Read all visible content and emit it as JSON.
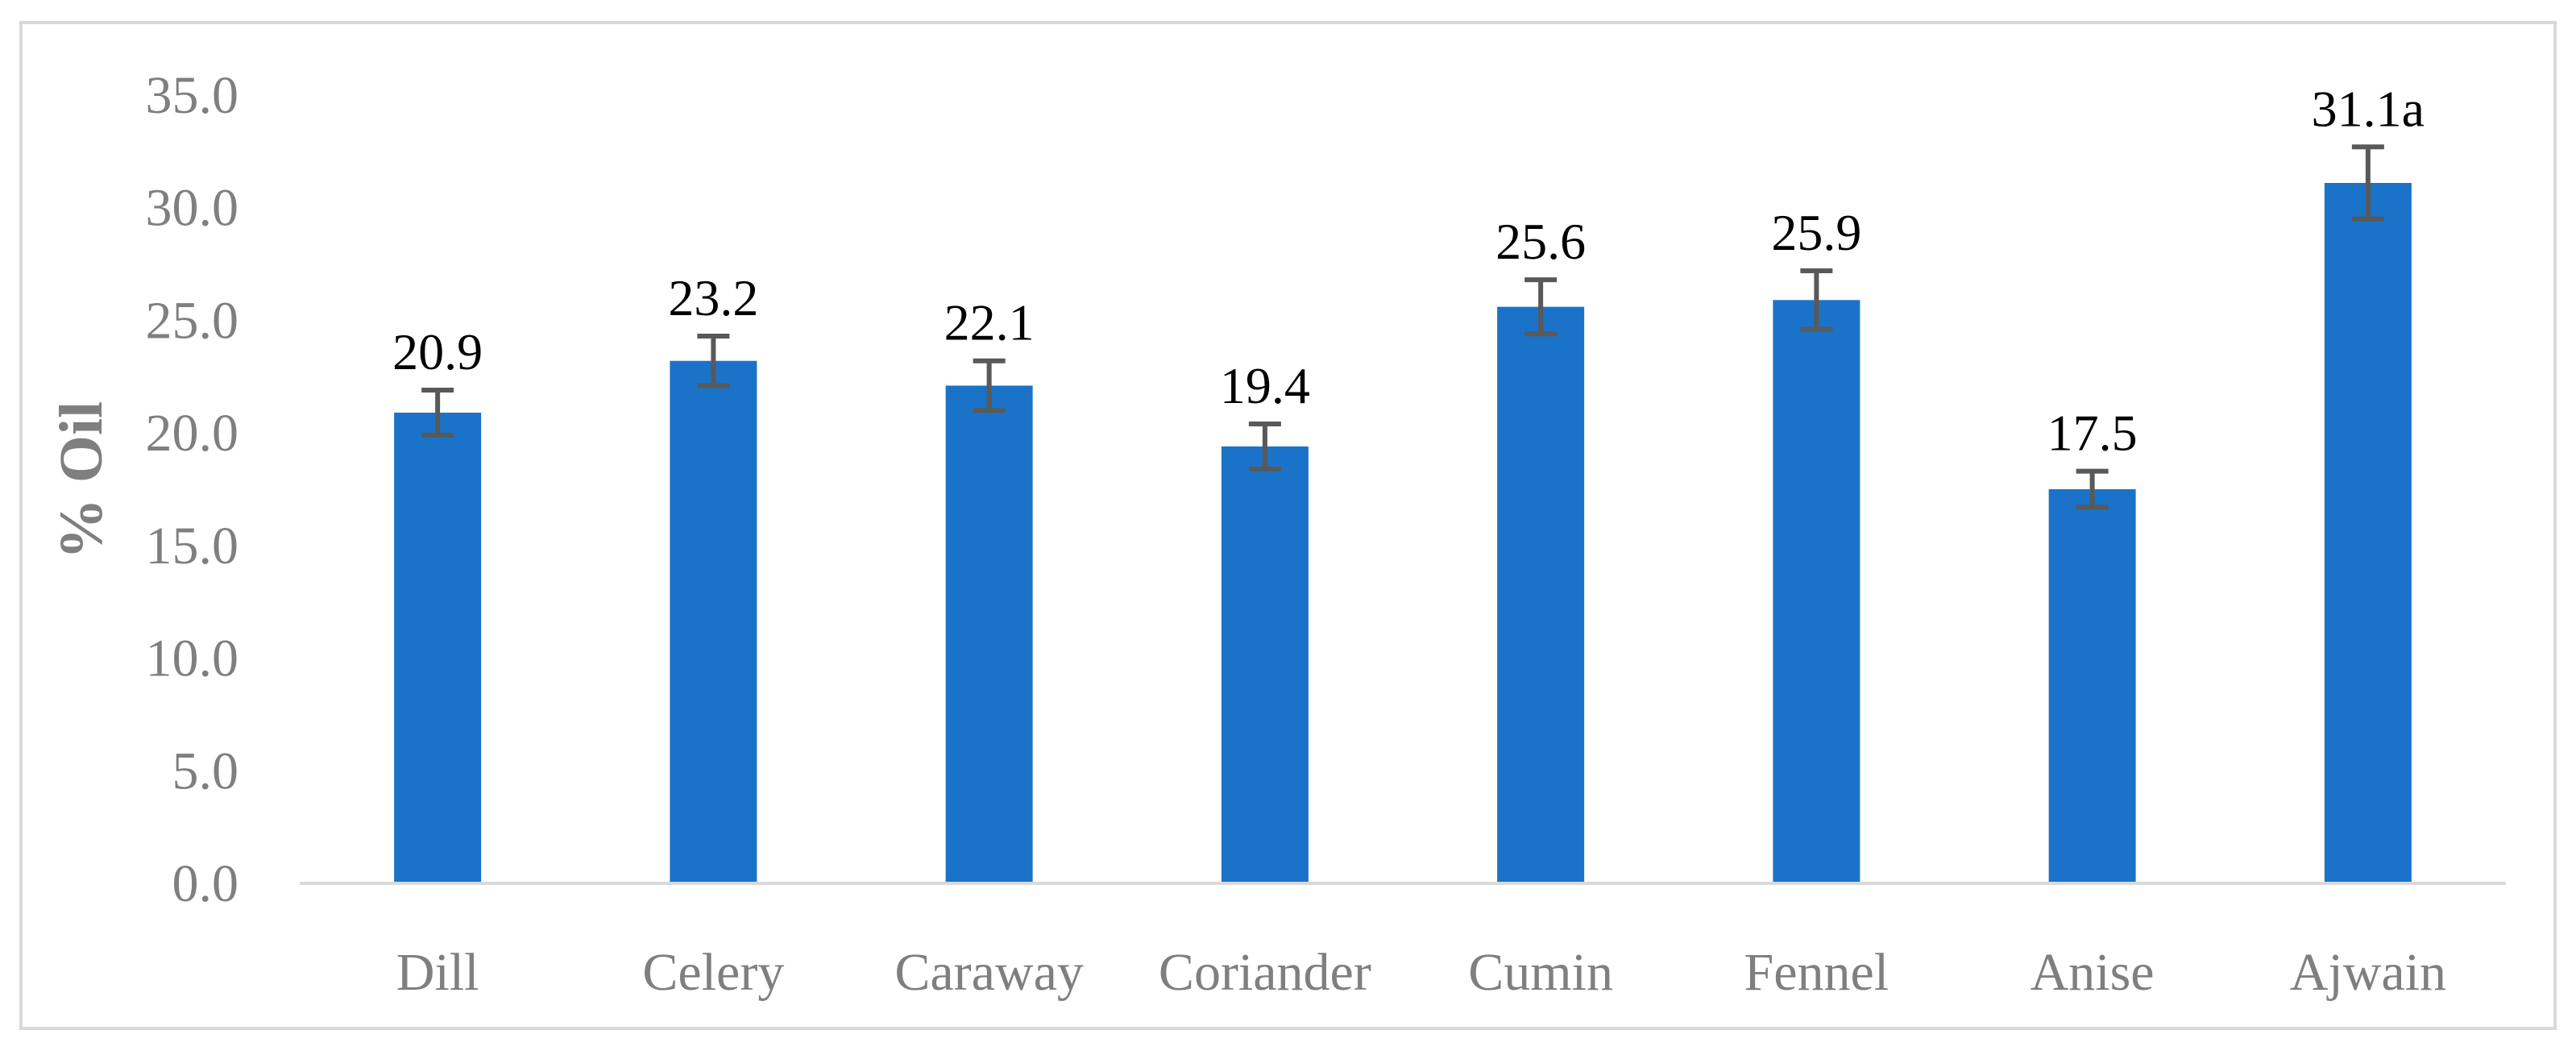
{
  "chart_data": {
    "type": "bar",
    "title": "",
    "xlabel": "",
    "ylabel": "% Oil",
    "categories": [
      "Dill",
      "Celery",
      "Caraway",
      "Coriander",
      "Cumin",
      "Fennel",
      "Anise",
      "Ajwain"
    ],
    "values": [
      20.9,
      23.2,
      22.1,
      19.4,
      25.6,
      25.9,
      17.5,
      31.1
    ],
    "data_labels": [
      "20.9",
      "23.2",
      "22.1",
      "19.4",
      "25.6",
      "25.9",
      "17.5",
      "31.1a"
    ],
    "error": [
      1.0,
      1.1,
      1.1,
      1.0,
      1.2,
      1.3,
      0.8,
      1.6
    ],
    "ylim": [
      0,
      35
    ],
    "yticks": [
      "0.0",
      "5.0",
      "10.0",
      "15.0",
      "20.0",
      "25.0",
      "30.0",
      "35.0"
    ],
    "grid": false,
    "legend": "none",
    "colors": {
      "bar": "#1a73c8",
      "error_bar": "#595959",
      "axis_line": "#d9d9d9",
      "tick_text": "#7f7f7f",
      "label_text": "#000000"
    }
  }
}
